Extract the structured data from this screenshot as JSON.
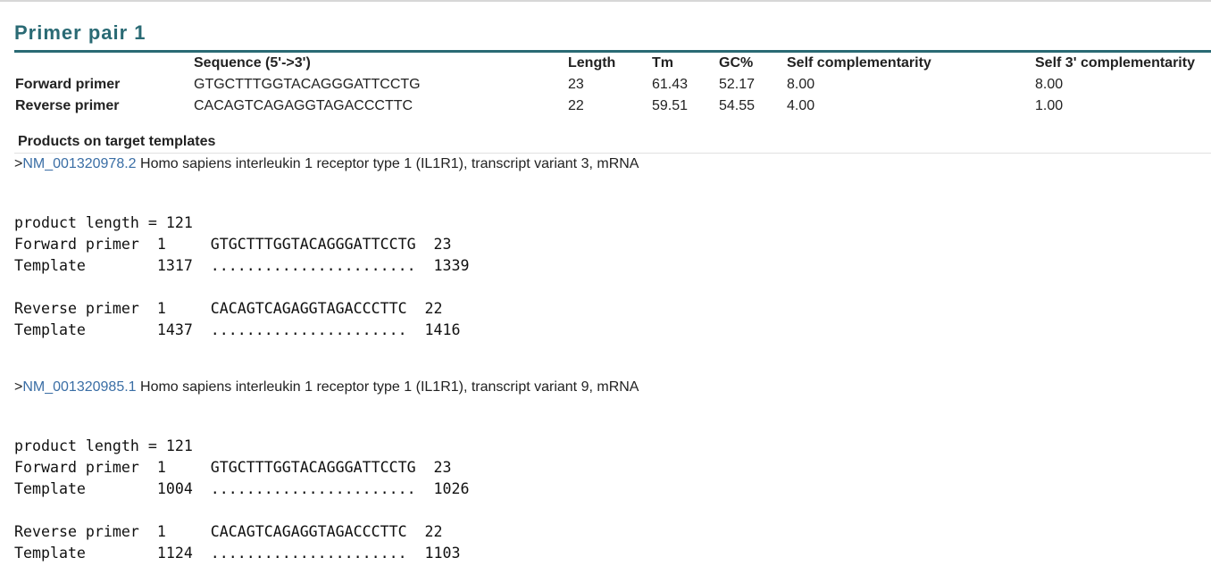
{
  "title": "Primer pair 1",
  "table": {
    "headers": {
      "sequence": "Sequence (5'->3')",
      "length": "Length",
      "tm": "Tm",
      "gc": "GC%",
      "self_comp": "Self complementarity",
      "self3_comp": "Self 3' complementarity"
    },
    "rows": [
      {
        "label": "Forward primer",
        "sequence": "GTGCTTTGGTACAGGGATTCCTG",
        "length": "23",
        "tm": "61.43",
        "gc": "52.17",
        "self_comp": "8.00",
        "self3_comp": "8.00"
      },
      {
        "label": "Reverse primer",
        "sequence": "CACAGTCAGAGGTAGACCCTTC",
        "length": "22",
        "tm": "59.51",
        "gc": "54.55",
        "self_comp": "4.00",
        "self3_comp": "1.00"
      }
    ]
  },
  "products_header": "Products on target templates",
  "targets": [
    {
      "prefix": ">",
      "accession": "NM_001320978.2",
      "description": " Homo sapiens interleukin 1 receptor type 1 (IL1R1), transcript variant 3, mRNA",
      "alignment": "product length = 121\nForward primer  1     GTGCTTTGGTACAGGGATTCCTG  23\nTemplate        1317  .......................  1339\n\nReverse primer  1     CACAGTCAGAGGTAGACCCTTC  22\nTemplate        1437  ......................  1416"
    },
    {
      "prefix": ">",
      "accession": "NM_001320985.1",
      "description": " Homo sapiens interleukin 1 receptor type 1 (IL1R1), transcript variant 9, mRNA",
      "alignment": "product length = 121\nForward primer  1     GTGCTTTGGTACAGGGATTCCTG  23\nTemplate        1004  .......................  1026\n\nReverse primer  1     CACAGTCAGAGGTAGACCCTTC  22\nTemplate        1124  ......................  1103"
    }
  ],
  "colors": {
    "title": "#2a6a74",
    "link": "#3a6ea5"
  }
}
